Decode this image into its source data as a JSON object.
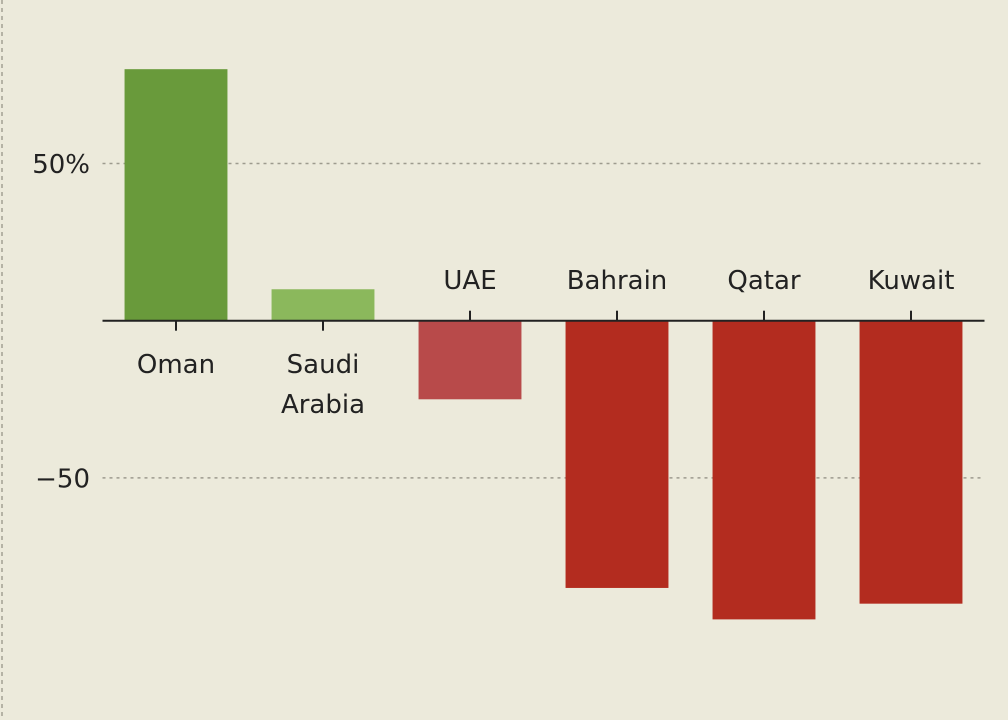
{
  "chart_data": {
    "type": "bar",
    "categories": [
      "Oman",
      "Saudi Arabia",
      "UAE",
      "Bahrain",
      "Qatar",
      "Kuwait"
    ],
    "values": [
      80,
      10,
      -25,
      -85,
      -95,
      -90
    ],
    "colors": [
      "#699a3b",
      "#8bb85c",
      "#b84a4a",
      "#b32c1f",
      "#b32c1f",
      "#b32c1f"
    ],
    "ylim": [
      -127,
      102
    ],
    "yticks": [
      {
        "value": 50,
        "label": "50%"
      },
      {
        "value": -50,
        "label": "−50"
      }
    ],
    "grid": true
  }
}
